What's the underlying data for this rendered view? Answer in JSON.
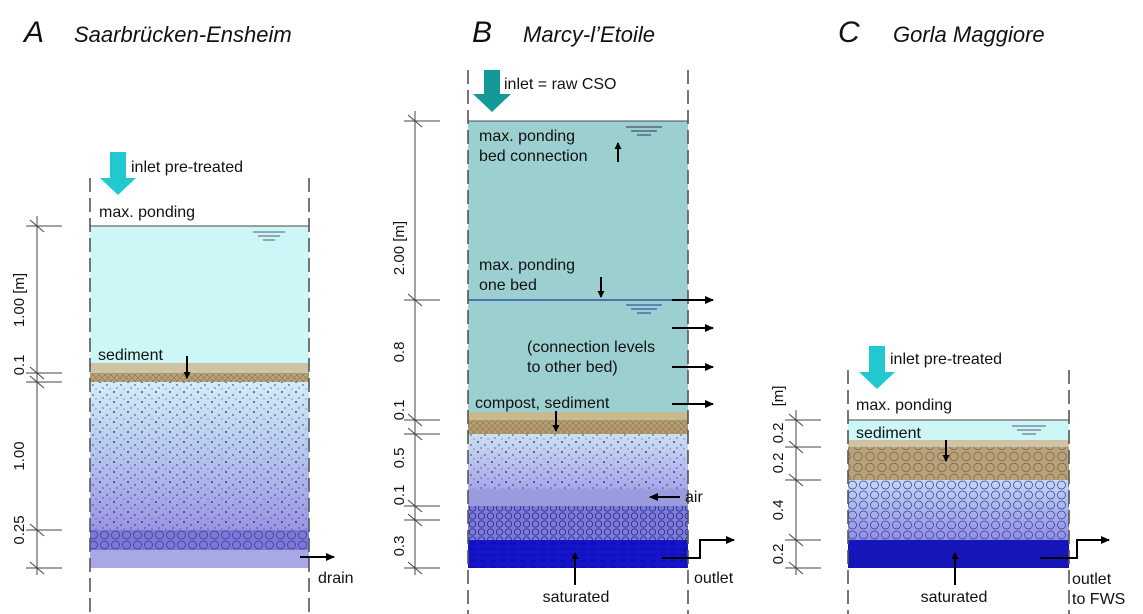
{
  "panels": {
    "A": {
      "letter": "A",
      "site": "Saarbrücken-Ensheim",
      "inlet": "inlet pre-treated",
      "max_ponding": "max. ponding",
      "sediment": "sediment",
      "drain": "drain",
      "dims": [
        "1.00 [m]",
        "0.1",
        "1.00",
        "0.25"
      ]
    },
    "B": {
      "letter": "B",
      "site": "Marcy-l’Etoile",
      "inlet": "inlet = raw CSO",
      "max_ponding_connection": [
        "max. ponding",
        "bed connection"
      ],
      "max_ponding_one_bed": [
        "max. ponding",
        "one bed"
      ],
      "connection_levels": [
        "(connection levels",
        "to other bed)"
      ],
      "compost_sediment": "compost, sediment",
      "air": "air",
      "saturated": "saturated",
      "outlet": "outlet",
      "dims": [
        "2.00 [m]",
        "0.8",
        "0.1",
        "0.5",
        "0.1",
        "0.3"
      ]
    },
    "C": {
      "letter": "C",
      "site": "Gorla Maggiore",
      "inlet": "inlet pre-treated",
      "max_ponding": "max. ponding",
      "sediment": "sediment",
      "saturated": "saturated",
      "outlet": [
        "outlet",
        "to FWS"
      ],
      "dims": [
        "[m]",
        "0.2",
        "0.2",
        "0.4",
        "0.2"
      ]
    }
  },
  "colors": {
    "water": "#cdf6f6",
    "water_b": "#9ccfcf",
    "sediment": "#b9a27d",
    "gravel_light": "#cfe8f6",
    "gravel_purple": "#9b9be8",
    "saturated": "#1010c8",
    "inlet_arrow": "#22c8d0",
    "inlet_arrow_b": "#14989a"
  }
}
